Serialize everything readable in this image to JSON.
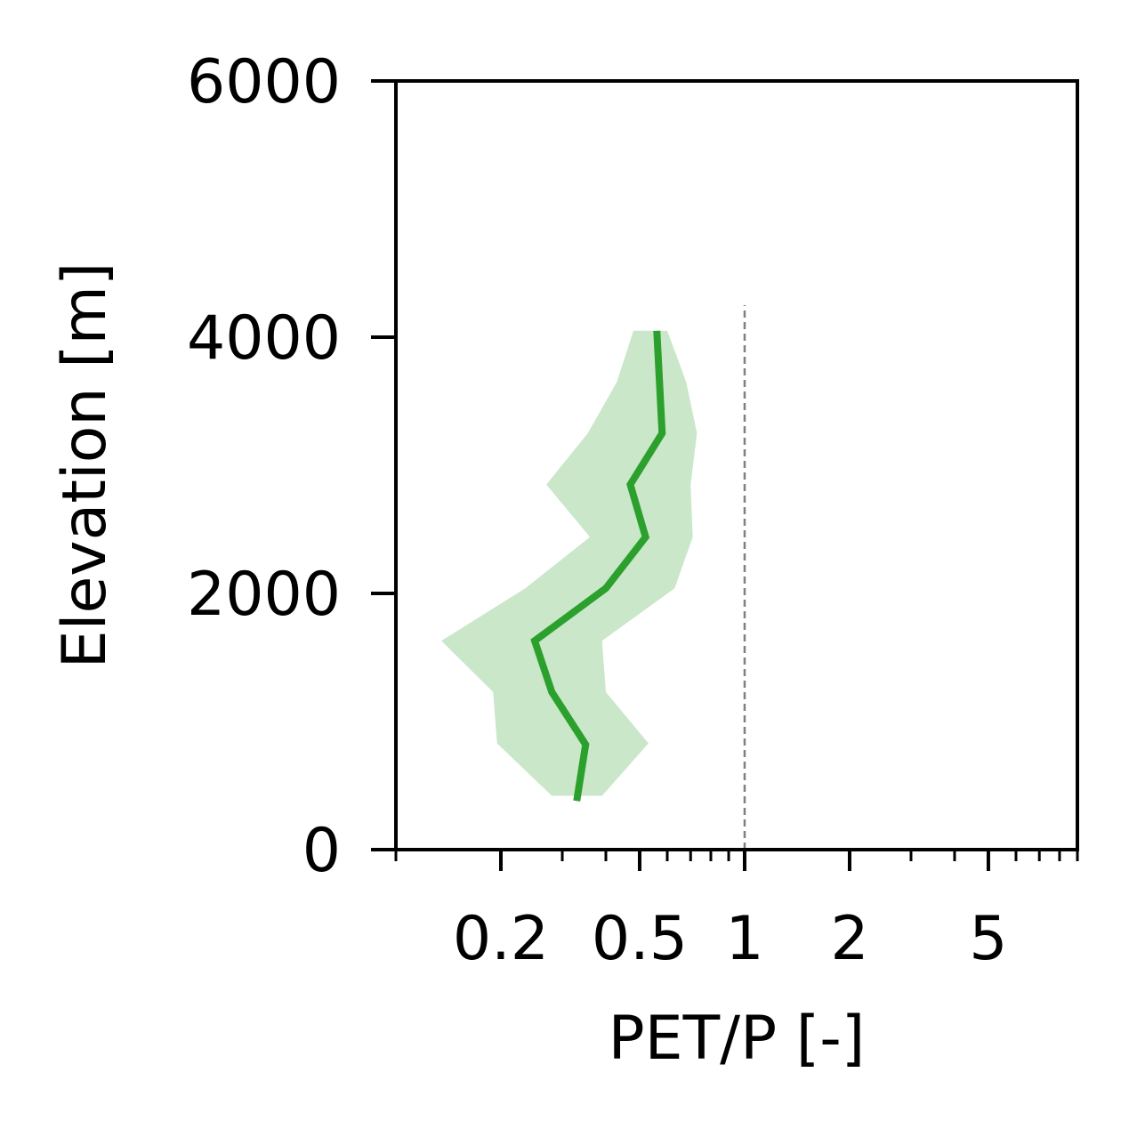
{
  "chart_data": {
    "type": "line",
    "title": "",
    "xlabel": "PET/P [-]",
    "ylabel": "Elevation [m]",
    "x_scale": "log",
    "xlim": [
      0.1,
      9
    ],
    "ylim": [
      0,
      6000
    ],
    "x_ticks": [
      {
        "value": 0.2,
        "label": "0.2"
      },
      {
        "value": 0.5,
        "label": "0.5"
      },
      {
        "value": 1,
        "label": "1"
      },
      {
        "value": 2,
        "label": "2"
      },
      {
        "value": 5,
        "label": "5"
      }
    ],
    "y_ticks": [
      {
        "value": 0,
        "label": "0"
      },
      {
        "value": 2000,
        "label": "2000"
      },
      {
        "value": 4000,
        "label": "4000"
      },
      {
        "value": 6000,
        "label": "6000"
      }
    ],
    "series": [
      {
        "color": "#2ca02c",
        "points": [
          {
            "x": 0.33,
            "y": 380
          },
          {
            "x": 0.35,
            "y": 820
          },
          {
            "x": 0.28,
            "y": 1230
          },
          {
            "x": 0.25,
            "y": 1630
          },
          {
            "x": 0.4,
            "y": 2040
          },
          {
            "x": 0.52,
            "y": 2440
          },
          {
            "x": 0.47,
            "y": 2850
          },
          {
            "x": 0.58,
            "y": 3250
          },
          {
            "x": 0.57,
            "y": 3650
          },
          {
            "x": 0.56,
            "y": 4050
          }
        ]
      }
    ],
    "band": {
      "color": "#2ca02c",
      "opacity": 0.25,
      "points": [
        {
          "y": 420,
          "low": 0.28,
          "high": 0.39
        },
        {
          "y": 830,
          "low": 0.195,
          "high": 0.53
        },
        {
          "y": 1230,
          "low": 0.19,
          "high": 0.4
        },
        {
          "y": 1630,
          "low": 0.135,
          "high": 0.39
        },
        {
          "y": 2040,
          "low": 0.235,
          "high": 0.63
        },
        {
          "y": 2440,
          "low": 0.36,
          "high": 0.71
        },
        {
          "y": 2850,
          "low": 0.27,
          "high": 0.7
        },
        {
          "y": 3250,
          "low": 0.355,
          "high": 0.73
        },
        {
          "y": 3650,
          "low": 0.43,
          "high": 0.68
        },
        {
          "y": 4050,
          "low": 0.48,
          "high": 0.6
        }
      ]
    },
    "reference_line": {
      "x": 1,
      "y_top": 4250,
      "color": "#808080",
      "style": "dashed"
    },
    "grid": false,
    "legend": "none"
  }
}
